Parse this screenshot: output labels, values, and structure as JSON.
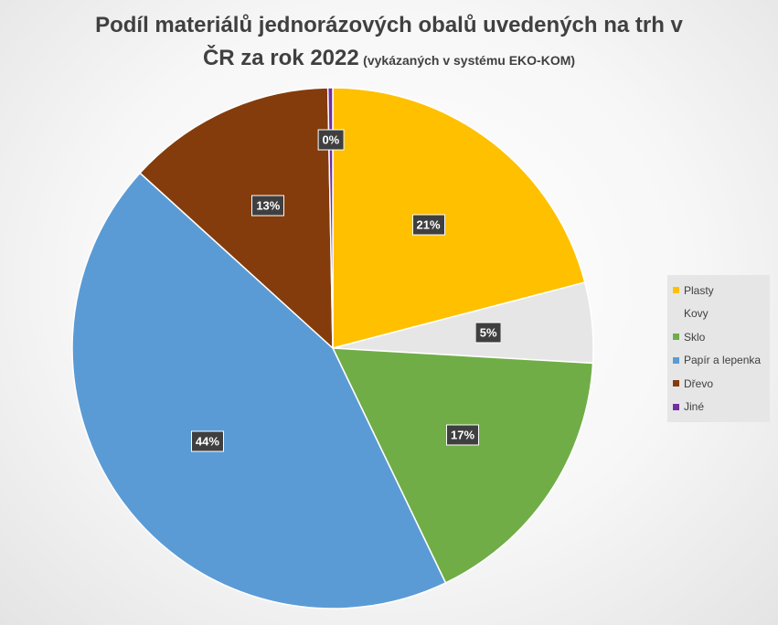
{
  "title": {
    "main_line1": "Podíl materiálů jednorázových obalů uvedených na trh v",
    "main_line2": "ČR za rok 2022",
    "subtitle": "(vykázaných v systému EKO-KOM)"
  },
  "chart_data": {
    "type": "pie",
    "title": "Podíl materiálů jednorázových obalů uvedených na trh v ČR za rok 2022 (vykázaných v systému EKO-KOM)",
    "categories": [
      "Plasty",
      "Kovy",
      "Sklo",
      "Papír a lepenka",
      "Dřevo",
      "Jiné"
    ],
    "values": [
      21,
      5,
      17,
      44,
      13,
      0.3
    ],
    "labels": [
      "21%",
      "5%",
      "17%",
      "44%",
      "13%",
      "0%"
    ],
    "colors": [
      "#FFC000",
      "#E7E6E6",
      "#70AD47",
      "#5B9BD5",
      "#843C0C",
      "#7030A0"
    ],
    "legend_position": "right"
  }
}
